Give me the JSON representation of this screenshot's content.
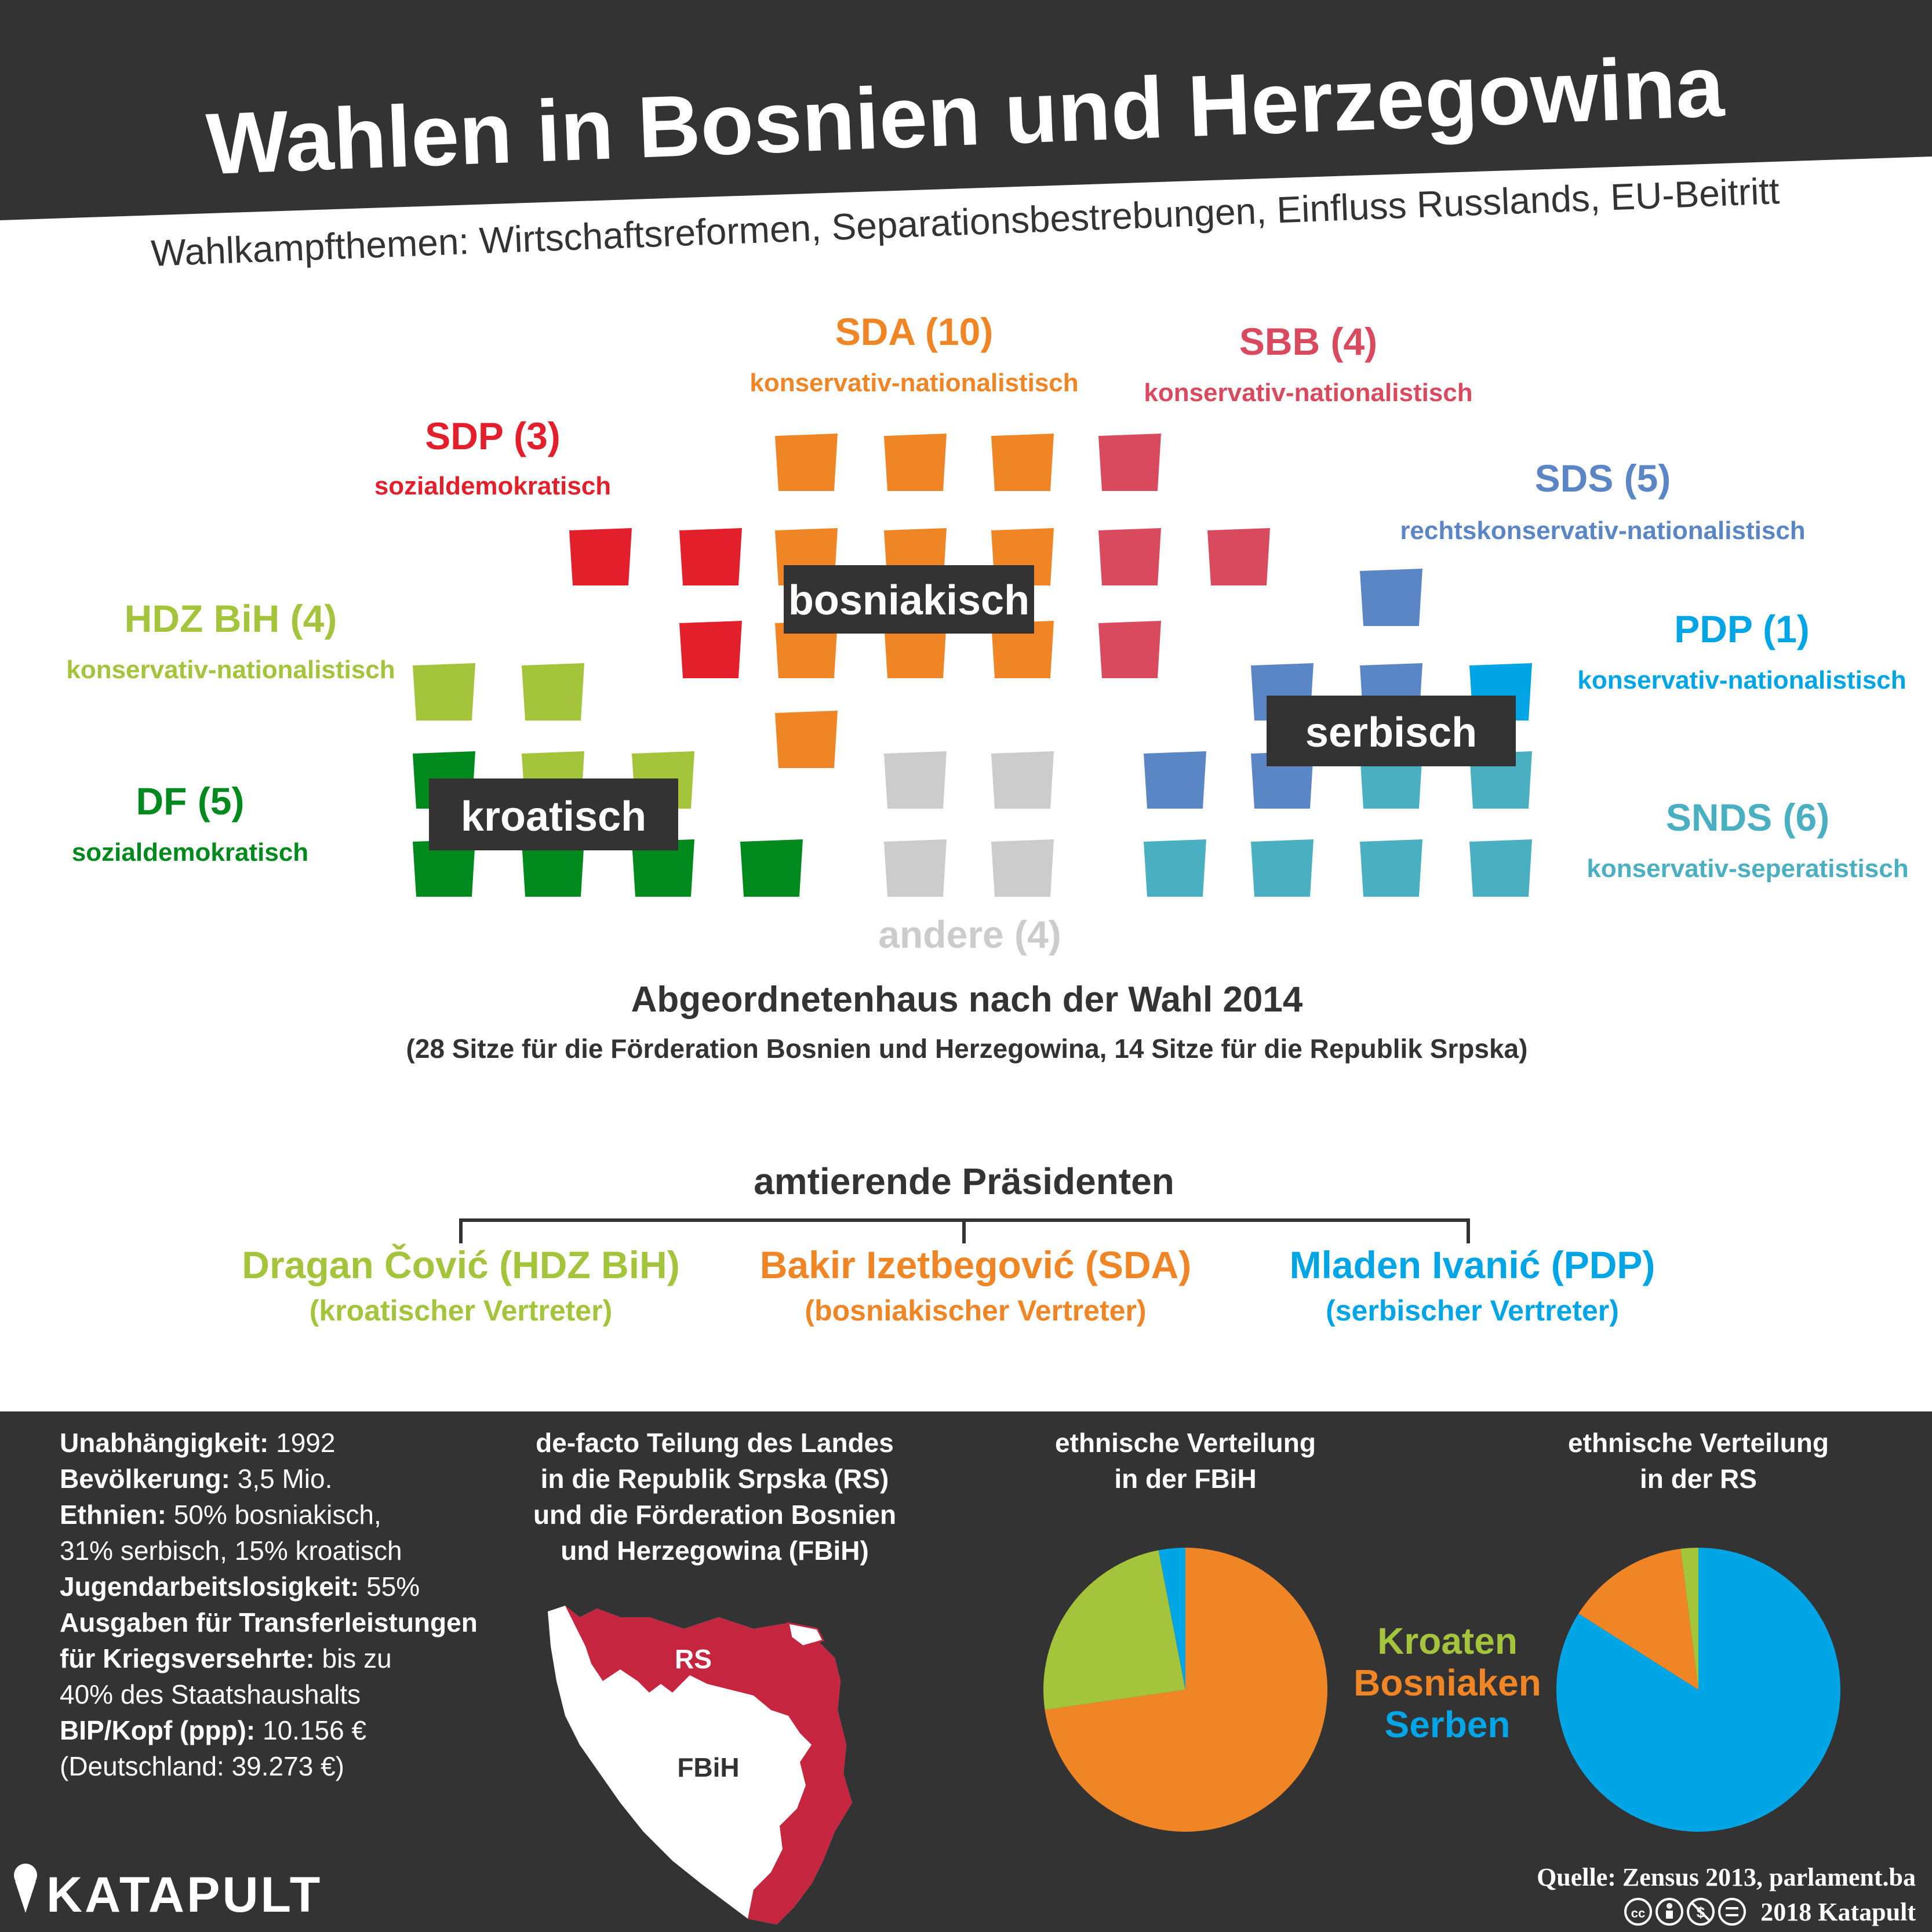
{
  "header": {
    "title": "Wahlen in Bosnien und Herzegowina",
    "subtitle": "Wahlkampfthemen: Wirtschaftsreformen, Separationsbestrebungen, Einfluss Russlands, EU-Beitritt"
  },
  "colors": {
    "dark": "#333333",
    "SDA": "#f08525",
    "SBB": "#d94a5f",
    "SDP": "#e31f2b",
    "SDS": "#5b86c5",
    "PDP": "#00a5e6",
    "HDZ": "#a3c43b",
    "DF": "#008a1e",
    "SNDS": "#4aafc0",
    "andere": "#cccccc"
  },
  "chart_data": [
    {
      "type": "parliament",
      "title": "Abgeordnetenhaus nach der Wahl 2014",
      "subtitle": "(28 Sitze für die Förderation Bosnien und Herzegowina, 14 Sitze für die Republik Srpska)",
      "parties": [
        {
          "key": "SDA",
          "label": "SDA (10)",
          "seats": 10,
          "ideology": "konservativ-nationalistisch"
        },
        {
          "key": "SBB",
          "label": "SBB (4)",
          "seats": 4,
          "ideology": "konservativ-nationalistisch"
        },
        {
          "key": "SDP",
          "label": "SDP (3)",
          "seats": 3,
          "ideology": "sozialdemokratisch"
        },
        {
          "key": "SDS",
          "label": "SDS (5)",
          "seats": 5,
          "ideology": "rechtskonservativ-nationalistisch"
        },
        {
          "key": "PDP",
          "label": "PDP (1)",
          "seats": 1,
          "ideology": "konservativ-nationalistisch"
        },
        {
          "key": "HDZ",
          "label": "HDZ BiH (4)",
          "seats": 4,
          "ideology": "konservativ-nationalistisch"
        },
        {
          "key": "DF",
          "label": "DF (5)",
          "seats": 5,
          "ideology": "sozialdemokratisch"
        },
        {
          "key": "SNDS",
          "label": "SNDS (6)",
          "seats": 6,
          "ideology": "konservativ-seperatistisch"
        },
        {
          "key": "andere",
          "label": "andere (4)",
          "seats": 4,
          "ideology": ""
        }
      ],
      "groups": [
        "bosniakisch",
        "serbisch",
        "kroatisch"
      ]
    },
    {
      "type": "pie",
      "title": "ethnische Verteilung in der FBiH",
      "labels": [
        "Bosniaken",
        "Kroaten",
        "Serben"
      ],
      "values": [
        72,
        24,
        3
      ]
    },
    {
      "type": "pie",
      "title": "ethnische Verteilung in der RS",
      "labels": [
        "Serben",
        "Bosniaken",
        "Kroaten"
      ],
      "values": [
        84,
        14,
        2
      ]
    }
  ],
  "presidents": {
    "title": "amtierende Präsidenten",
    "items": [
      {
        "name": "Dragan Čović (HDZ BiH)",
        "role": "(kroatischer Vertreter)",
        "colorKey": "HDZ"
      },
      {
        "name": "Bakir Izetbegović (SDA)",
        "role": "(bosniakischer Vertreter)",
        "colorKey": "SDA"
      },
      {
        "name": "Mladen Ivanić (PDP)",
        "role": "(serbischer Vertreter)",
        "colorKey": "PDP"
      }
    ]
  },
  "facts": [
    {
      "label": "Unabhängigkeit:",
      "value": "1992"
    },
    {
      "label": "Bevölkerung:",
      "value": "3,5 Mio."
    },
    {
      "label": "Ethnien:",
      "value": "50% bosniakisch,"
    },
    {
      "label": "",
      "value": "31% serbisch, 15% kroatisch"
    },
    {
      "label": "Jugendarbeitslosigkeit:",
      "value": "55%"
    },
    {
      "label": "Ausgaben für Transferleistungen",
      "value": ""
    },
    {
      "label": "für Kriegsversehrte:",
      "value": "bis zu"
    },
    {
      "label": "",
      "value": "40% des Staatshaushalts"
    },
    {
      "label": "BIP/Kopf (ppp):",
      "value": "10.156 €"
    },
    {
      "label": "",
      "value": "(Deutschland: 39.273 €)"
    }
  ],
  "map": {
    "title_lines": [
      "de-facto Teilung des Landes",
      "in die Republik Srpska (RS)",
      "und die Förderation Bosnien",
      "und Herzegowina (FBiH)"
    ],
    "label_rs": "RS",
    "label_fbih": "FBiH"
  },
  "pie_titles": {
    "fbih": [
      "ethnische Verteilung",
      "in der FBiH"
    ],
    "rs": [
      "ethnische Verteilung",
      "in der RS"
    ]
  },
  "legend": [
    {
      "label": "Kroaten",
      "colorKey": "HDZ"
    },
    {
      "label": "Bosniaken",
      "colorKey": "SDA"
    },
    {
      "label": "Serben",
      "colorKey": "PDP"
    }
  ],
  "footer": {
    "brand": "KATAPULT",
    "source": "Quelle: Zensus 2013, parlament.ba",
    "copyright": "2018 Katapult",
    "license_icons": [
      "cc-icon",
      "by-icon",
      "nc-icon",
      "nd-icon"
    ]
  }
}
